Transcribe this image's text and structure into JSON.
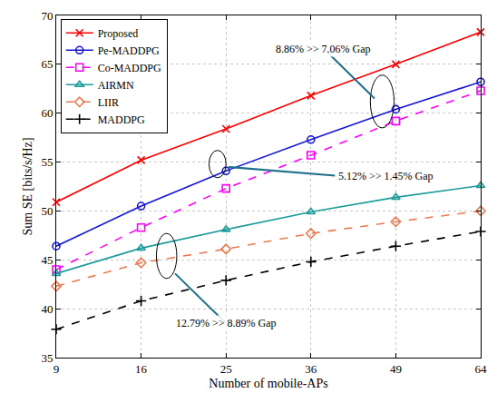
{
  "chart_data": {
    "type": "line",
    "x_label": "Number of mobile-APs",
    "y_label": "Sum SE [bits/s/Hz]",
    "categories": [
      "9",
      "16",
      "25",
      "36",
      "49",
      "64"
    ],
    "ylim": [
      35,
      70
    ],
    "yticks": [
      35,
      40,
      45,
      50,
      55,
      60,
      65,
      70
    ],
    "grid": true,
    "legend": "top-left",
    "series": [
      {
        "name": "Proposed",
        "color": "#ff0000",
        "marker": "x",
        "line_style": "solid",
        "values": [
          50.9,
          55.2,
          58.4,
          61.8,
          65.0,
          68.3
        ]
      },
      {
        "name": "Pe-MADDPG",
        "color": "#1515d6",
        "marker": "circle",
        "line_style": "solid",
        "values": [
          46.4,
          50.5,
          54.1,
          57.3,
          60.4,
          63.2
        ]
      },
      {
        "name": "Co-MADDPG",
        "color": "#ff00ff",
        "marker": "square",
        "line_style": "dashed",
        "values": [
          44.0,
          48.3,
          52.3,
          55.7,
          59.2,
          62.3
        ]
      },
      {
        "name": "AIRMN",
        "color": "#1b9b9b",
        "marker": "triangle",
        "line_style": "solid",
        "values": [
          43.6,
          46.2,
          48.1,
          49.9,
          51.4,
          52.6
        ]
      },
      {
        "name": "LIIR",
        "color": "#ea7a4f",
        "marker": "diamond",
        "line_style": "dashed",
        "values": [
          42.3,
          44.7,
          46.1,
          47.7,
          48.9,
          50.0
        ]
      },
      {
        "name": "MADDPG",
        "color": "#000000",
        "marker": "plus",
        "line_style": "dashed",
        "values": [
          37.9,
          40.8,
          42.9,
          44.8,
          46.4,
          47.9
        ]
      }
    ],
    "annotations": [
      "8.86% >> 7.06% Gap",
      "5.12% >> 1.45% Gap",
      "12.79% >> 8.89% Gap"
    ]
  }
}
